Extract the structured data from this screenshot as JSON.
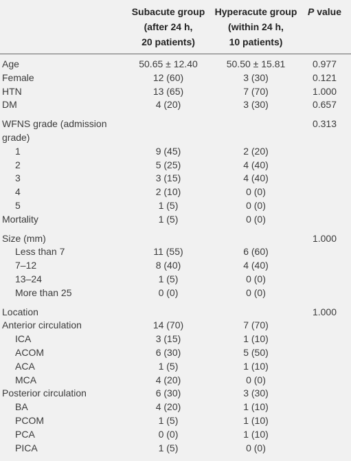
{
  "table": {
    "header": {
      "columns": [
        [
          "Subacute group",
          "(after 24 h,",
          "20 patients)"
        ],
        [
          "Hyperacute group",
          "(within 24 h,",
          "10 patients)"
        ],
        [
          "P value"
        ]
      ]
    },
    "sections": [
      {
        "rows": [
          {
            "label": "Age",
            "cells": [
              "50.65 ± 12.40",
              "50.50 ± 15.81",
              "0.977"
            ]
          },
          {
            "label": "Female",
            "cells": [
              "12 (60)",
              "3 (30)",
              "0.121"
            ]
          },
          {
            "label": "HTN",
            "cells": [
              "13 (65)",
              "7 (70)",
              "1.000"
            ]
          },
          {
            "label": "DM",
            "cells": [
              "4 (20)",
              "3 (30)",
              "0.657"
            ]
          }
        ]
      },
      {
        "rows": [
          {
            "label": "WFNS grade (admission grade)",
            "cells": [
              null,
              null,
              "0.313"
            ],
            "items": [
              {
                "label": "1",
                "cells": [
                  "9 (45)",
                  "2 (20)",
                  null
                ]
              },
              {
                "label": "2",
                "cells": [
                  "5 (25)",
                  "4 (40)",
                  null
                ]
              },
              {
                "label": "3",
                "cells": [
                  "3 (15)",
                  "4 (40)",
                  null
                ]
              },
              {
                "label": "4",
                "cells": [
                  "2 (10)",
                  "0 (0)",
                  null
                ]
              },
              {
                "label": "5",
                "cells": [
                  "1 (5)",
                  "0 (0)",
                  null
                ]
              }
            ]
          },
          {
            "label": "Mortality",
            "cells": [
              "1 (5)",
              "0 (0)",
              null
            ]
          }
        ]
      },
      {
        "rows": [
          {
            "label": "Size (mm)",
            "cells": [
              null,
              null,
              "1.000"
            ],
            "items": [
              {
                "label": "Less than 7",
                "cells": [
                  "11 (55)",
                  "6 (60)",
                  null
                ]
              },
              {
                "label": "7–12",
                "cells": [
                  "8 (40)",
                  "4 (40)",
                  null
                ]
              },
              {
                "label": "13–24",
                "cells": [
                  "1 (5)",
                  "0 (0)",
                  null
                ]
              },
              {
                "label": "More than 25",
                "cells": [
                  "0 (0)",
                  "0 (0)",
                  null
                ]
              }
            ]
          }
        ]
      },
      {
        "rows": [
          {
            "label": "Location",
            "cells": [
              null,
              null,
              "1.000"
            ]
          },
          {
            "label": "Anterior circulation",
            "cells": [
              "14 (70)",
              "7 (70)",
              null
            ],
            "items": [
              {
                "label": "ICA",
                "cells": [
                  "3 (15)",
                  "1 (10)",
                  null
                ]
              },
              {
                "label": "ACOM",
                "cells": [
                  "6 (30)",
                  "5 (50)",
                  null
                ]
              },
              {
                "label": "ACA",
                "cells": [
                  "1 (5)",
                  "1 (10)",
                  null
                ]
              },
              {
                "label": "MCA",
                "cells": [
                  "4 (20)",
                  "0 (0)",
                  null
                ]
              }
            ]
          },
          {
            "label": "Posterior circulation",
            "cells": [
              "6 (30)",
              "3 (30)",
              null
            ],
            "items": [
              {
                "label": "BA",
                "cells": [
                  "4 (20)",
                  "1 (10)",
                  null
                ]
              },
              {
                "label": "PCOM",
                "cells": [
                  "1 (5)",
                  "1 (10)",
                  null
                ]
              },
              {
                "label": "PCA",
                "cells": [
                  "0 (0)",
                  "1 (10)",
                  null
                ]
              },
              {
                "label": "PICA",
                "cells": [
                  "1 (5)",
                  "0 (0)",
                  null
                ]
              }
            ]
          }
        ]
      }
    ]
  }
}
